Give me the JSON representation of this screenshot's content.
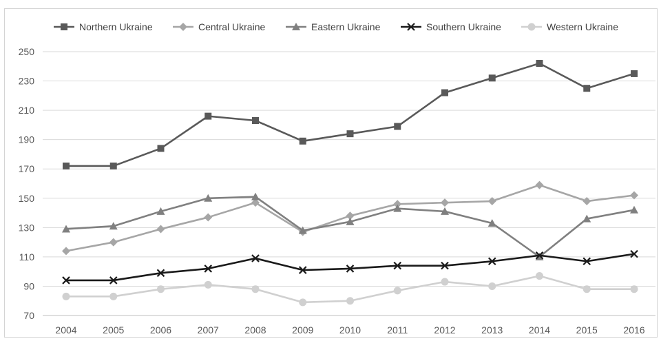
{
  "chart_data": {
    "type": "line",
    "title": "",
    "xlabel": "",
    "ylabel": "",
    "categories": [
      "2004",
      "2005",
      "2006",
      "2007",
      "2008",
      "2009",
      "2010",
      "2011",
      "2012",
      "2013",
      "2014",
      "2015",
      "2016"
    ],
    "ylim": [
      70,
      250
    ],
    "yticks": [
      70,
      90,
      110,
      130,
      150,
      170,
      190,
      210,
      230,
      250
    ],
    "grid": "horizontal",
    "legend_position": "top",
    "series": [
      {
        "name": "Northern Ukraine",
        "color": "#595959",
        "marker": "square",
        "values": [
          172,
          172,
          184,
          206,
          203,
          189,
          194,
          199,
          222,
          232,
          242,
          225,
          235
        ]
      },
      {
        "name": "Central Ukraine",
        "color": "#a6a6a6",
        "marker": "diamond",
        "values": [
          114,
          120,
          129,
          137,
          147,
          127,
          138,
          146,
          147,
          148,
          159,
          148,
          152
        ]
      },
      {
        "name": "Eastern Ukraine",
        "color": "#808080",
        "marker": "triangle",
        "values": [
          129,
          131,
          141,
          150,
          151,
          128,
          134,
          143,
          141,
          133,
          110,
          136,
          142
        ]
      },
      {
        "name": "Southern Ukraine",
        "color": "#1a1a1a",
        "marker": "x",
        "values": [
          94,
          94,
          99,
          102,
          109,
          101,
          102,
          104,
          104,
          107,
          111,
          107,
          112
        ]
      },
      {
        "name": "Western Ukraine",
        "color": "#d0d0d0",
        "marker": "circle",
        "values": [
          83,
          83,
          88,
          91,
          88,
          79,
          80,
          87,
          93,
          90,
          97,
          88,
          88
        ]
      }
    ]
  }
}
